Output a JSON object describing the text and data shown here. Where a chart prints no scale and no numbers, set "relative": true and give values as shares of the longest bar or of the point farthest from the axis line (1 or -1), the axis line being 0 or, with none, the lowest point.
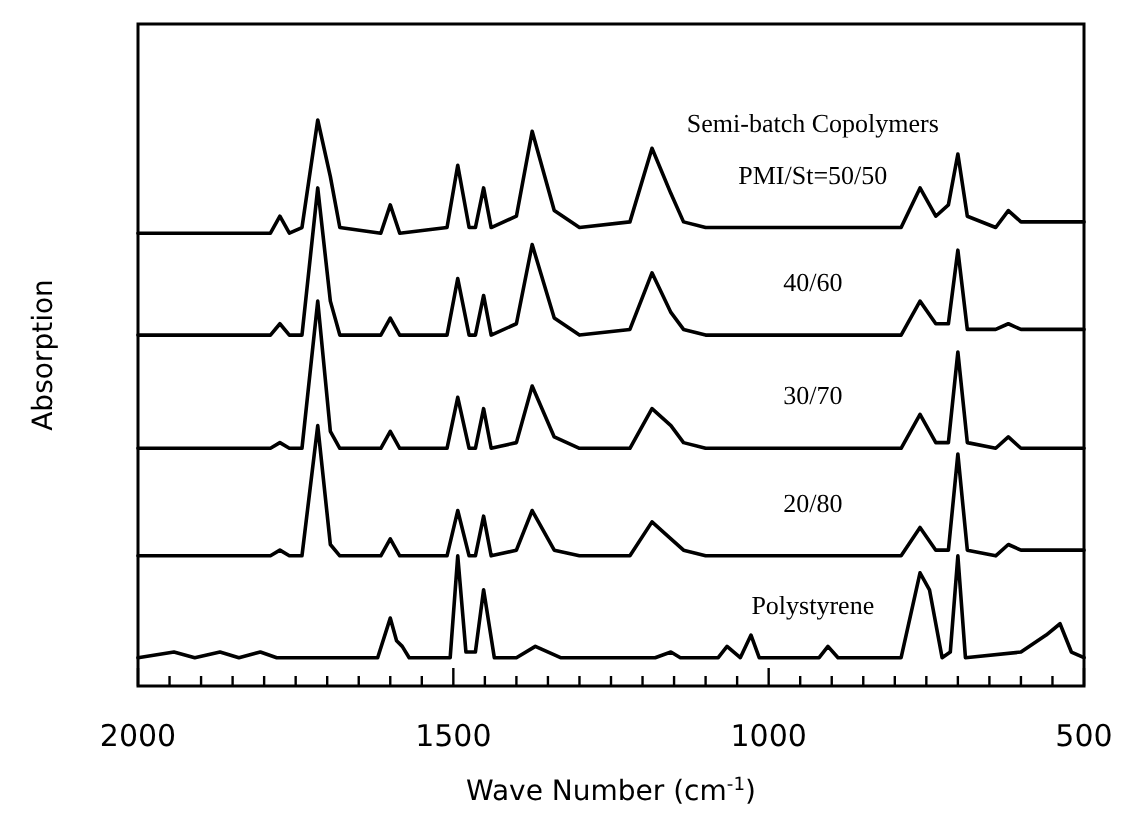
{
  "chart_data": {
    "type": "line",
    "relative": true,
    "xlabel": "Wave Number (cm$^{-1}$)",
    "ylabel": "Absorption",
    "annotations": [
      "Semi-batch Copolymers"
    ],
    "line_style": "solid",
    "xlim": [
      2000,
      500
    ],
    "xticks": [
      2000,
      {
        "value": 1950,
        "label": null
      },
      {
        "value": 1900,
        "label": null
      },
      {
        "value": 1850,
        "label": null
      },
      {
        "value": 1800,
        "label": null
      },
      {
        "value": 1750,
        "label": null
      },
      {
        "value": 1700,
        "label": null
      },
      {
        "value": 1650,
        "label": null
      },
      {
        "value": 1600,
        "label": null
      },
      {
        "value": 1550,
        "label": null
      },
      1500,
      {
        "value": 1450,
        "label": null
      },
      {
        "value": 1400,
        "label": null
      },
      {
        "value": 1350,
        "label": null
      },
      {
        "value": 1300,
        "label": null
      },
      {
        "value": 1250,
        "label": null
      },
      {
        "value": 1200,
        "label": null
      },
      {
        "value": 1150,
        "label": null
      },
      {
        "value": 1100,
        "label": null
      },
      {
        "value": 1050,
        "label": null
      },
      1000,
      {
        "value": 950,
        "label": null
      },
      {
        "value": 900,
        "label": null
      },
      {
        "value": 850,
        "label": null
      },
      {
        "value": 800,
        "label": null
      },
      {
        "value": 750,
        "label": null
      },
      {
        "value": 700,
        "label": null
      },
      {
        "value": 650,
        "label": null
      },
      {
        "value": 600,
        "label": null
      },
      {
        "value": 550,
        "label": null
      },
      500
    ],
    "x": [
      2000,
      1790,
      1775,
      1760,
      1740,
      1715,
      1695,
      1680,
      1615,
      1600,
      1585,
      1510,
      1493,
      1475,
      1465,
      1452,
      1440,
      1400,
      1375,
      1340,
      1300,
      1220,
      1185,
      1155,
      1135,
      1100,
      1000,
      790,
      760,
      735,
      715,
      700,
      685,
      640,
      620,
      600,
      500
    ],
    "series": [
      {
        "name": "PMI/St=50/50",
        "color": "#000000",
        "values": [
          0.8,
          0.8,
          0.83,
          0.8,
          0.81,
          1.0,
          0.9,
          0.81,
          0.8,
          0.85,
          0.8,
          0.81,
          0.92,
          0.81,
          0.81,
          0.88,
          0.81,
          0.83,
          0.98,
          0.84,
          0.81,
          0.82,
          0.95,
          0.87,
          0.82,
          0.81,
          0.81,
          0.81,
          0.88,
          0.83,
          0.85,
          0.94,
          0.83,
          0.81,
          0.84,
          0.82,
          0.82
        ]
      },
      {
        "name": "40/60",
        "color": "#000000",
        "values": [
          0.62,
          0.62,
          0.64,
          0.62,
          0.62,
          0.88,
          0.68,
          0.62,
          0.62,
          0.65,
          0.62,
          0.62,
          0.72,
          0.62,
          0.62,
          0.69,
          0.62,
          0.64,
          0.78,
          0.65,
          0.62,
          0.63,
          0.73,
          0.66,
          0.63,
          0.62,
          0.62,
          0.62,
          0.68,
          0.64,
          0.64,
          0.77,
          0.63,
          0.63,
          0.64,
          0.63,
          0.63
        ]
      },
      {
        "name": "30/70",
        "color": "#000000",
        "values": [
          0.42,
          0.42,
          0.43,
          0.42,
          0.42,
          0.68,
          0.45,
          0.42,
          0.42,
          0.45,
          0.42,
          0.42,
          0.51,
          0.42,
          0.42,
          0.49,
          0.42,
          0.43,
          0.53,
          0.44,
          0.42,
          0.42,
          0.49,
          0.46,
          0.43,
          0.42,
          0.42,
          0.42,
          0.48,
          0.43,
          0.43,
          0.59,
          0.43,
          0.42,
          0.44,
          0.42,
          0.42
        ]
      },
      {
        "name": "20/80",
        "color": "#000000",
        "values": [
          0.23,
          0.23,
          0.24,
          0.23,
          0.23,
          0.46,
          0.25,
          0.23,
          0.23,
          0.26,
          0.23,
          0.23,
          0.31,
          0.23,
          0.23,
          0.3,
          0.23,
          0.24,
          0.31,
          0.24,
          0.23,
          0.23,
          0.29,
          0.26,
          0.24,
          0.23,
          0.23,
          0.23,
          0.28,
          0.24,
          0.24,
          0.41,
          0.24,
          0.23,
          0.25,
          0.24,
          0.24
        ]
      },
      {
        "name": "Polystyrene",
        "color": "#000000",
        "x": [
          2000,
          1943,
          1910,
          1870,
          1840,
          1806,
          1780,
          1620,
          1600,
          1590,
          1581,
          1570,
          1505,
          1493,
          1480,
          1465,
          1452,
          1435,
          1400,
          1370,
          1330,
          1180,
          1155,
          1140,
          1080,
          1066,
          1045,
          1028,
          1015,
          920,
          906,
          890,
          790,
          760,
          745,
          725,
          712,
          700,
          688,
          600,
          560,
          538,
          520,
          500
        ],
        "values": [
          0.05,
          0.06,
          0.05,
          0.06,
          0.05,
          0.06,
          0.05,
          0.05,
          0.12,
          0.08,
          0.07,
          0.05,
          0.05,
          0.23,
          0.06,
          0.06,
          0.17,
          0.05,
          0.05,
          0.07,
          0.05,
          0.05,
          0.06,
          0.05,
          0.05,
          0.07,
          0.05,
          0.09,
          0.05,
          0.05,
          0.07,
          0.05,
          0.05,
          0.2,
          0.17,
          0.05,
          0.06,
          0.23,
          0.05,
          0.06,
          0.09,
          0.11,
          0.06,
          0.05
        ]
      }
    ]
  }
}
